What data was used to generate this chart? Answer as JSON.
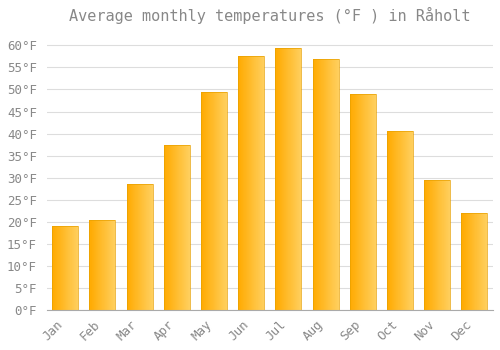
{
  "title": "Average monthly temperatures (°F ) in Råholt",
  "months": [
    "Jan",
    "Feb",
    "Mar",
    "Apr",
    "May",
    "Jun",
    "Jul",
    "Aug",
    "Sep",
    "Oct",
    "Nov",
    "Dec"
  ],
  "values": [
    19,
    20.5,
    28.5,
    37.5,
    49.5,
    57.5,
    59.5,
    57,
    49,
    40.5,
    29.5,
    22
  ],
  "bar_color_left": "#FFAA00",
  "bar_color_right": "#FFD060",
  "bar_edge_color": "#E8A000",
  "background_color": "#FFFFFF",
  "grid_color": "#DDDDDD",
  "text_color": "#888888",
  "bottom_line_color": "#AAAAAA",
  "ylim": [
    0,
    63
  ],
  "yticks": [
    0,
    5,
    10,
    15,
    20,
    25,
    30,
    35,
    40,
    45,
    50,
    55,
    60
  ],
  "title_fontsize": 11,
  "tick_fontsize": 9
}
